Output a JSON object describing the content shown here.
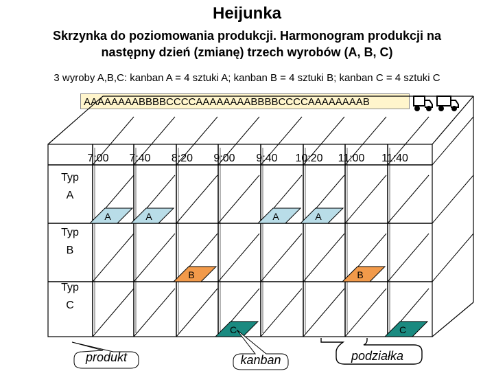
{
  "title": "Heijunka",
  "subtitle_line1": "Skrzynka do poziomowania produkcji. Harmonogram produkcji na",
  "subtitle_line2": "następny dzień (zmianę) trzech wyrobów (A, B, C)",
  "note": "3 wyroby A,B,C: kanban A = 4 sztuki A; kanban B = 4 sztuki B; kanban C = 4 sztuki C",
  "sequence": "AAAAAAAABBBBCCCCAAAAAAAABBBBCCCCAAAAAAAAB",
  "time_slots": [
    "7:00",
    "7:40",
    "8:20",
    "9:00",
    "9:40",
    "10:20",
    "11:00",
    "11:40"
  ],
  "rows": [
    {
      "word": "Typ",
      "letter": "A"
    },
    {
      "word": "Typ",
      "letter": "B"
    },
    {
      "word": "Typ",
      "letter": "C"
    }
  ],
  "cards": [
    {
      "label": "A",
      "row": 0,
      "slot": 0,
      "color": "#b9dde8"
    },
    {
      "label": "A",
      "row": 0,
      "slot": 1,
      "color": "#b9dde8"
    },
    {
      "label": "A",
      "row": 0,
      "slot": 4,
      "color": "#b9dde8"
    },
    {
      "label": "A",
      "row": 0,
      "slot": 5,
      "color": "#b9dde8"
    },
    {
      "label": "B",
      "row": 1,
      "slot": 2,
      "color": "#f29a4a"
    },
    {
      "label": "B",
      "row": 1,
      "slot": 6,
      "color": "#f29a4a"
    },
    {
      "label": "C",
      "row": 2,
      "slot": 3,
      "color": "#1a8a80"
    },
    {
      "label": "C",
      "row": 2,
      "slot": 7,
      "color": "#1a8a80"
    }
  ],
  "callouts": {
    "produkt": "produkt",
    "kanban": "kanban",
    "podzialka": "podziałka"
  },
  "icons": [
    "truck-icon",
    "truck-icon"
  ]
}
